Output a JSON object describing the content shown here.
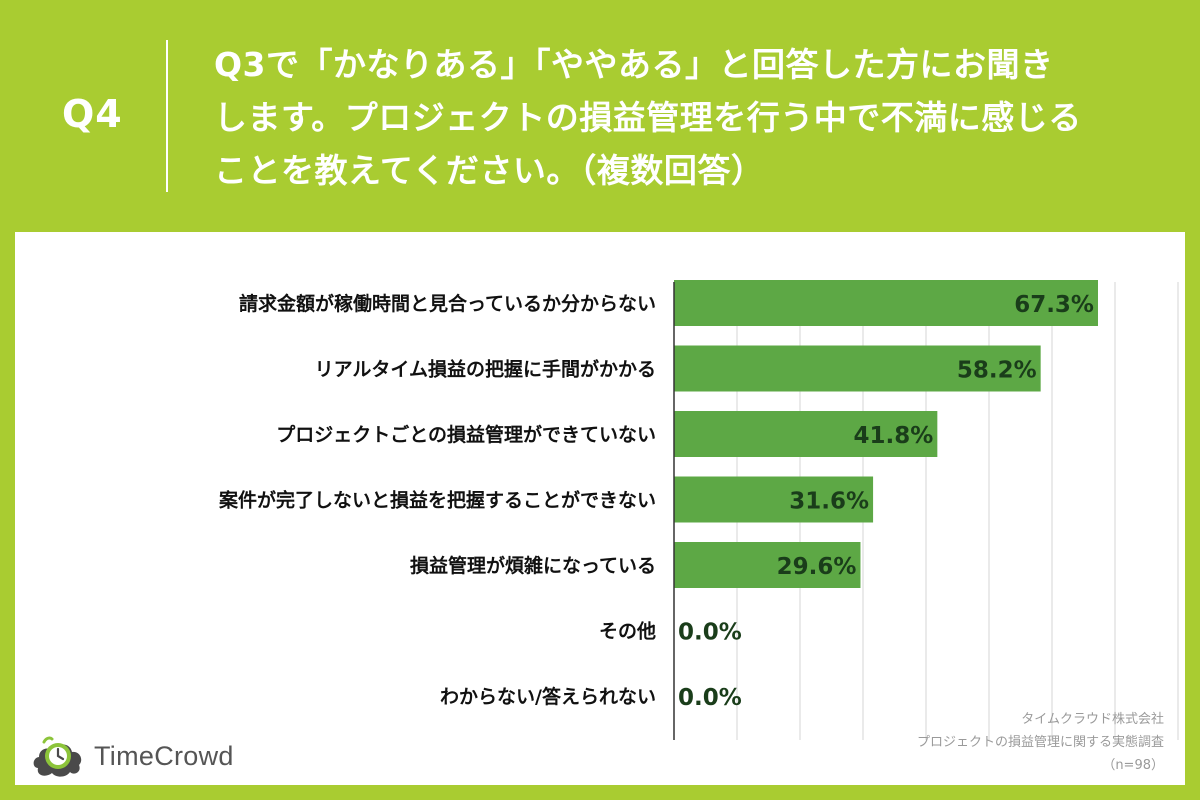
{
  "header": {
    "question_number": "Q4",
    "question_lines": [
      "Q3で「かなりある」「ややある」と回答した方にお聞き",
      "します。プロジェクトの損益管理を行う中で不満に感じる",
      "ことを教えてください。（複数回答）"
    ]
  },
  "chart_data": {
    "type": "bar",
    "orientation": "horizontal",
    "categories": [
      "請求金額が稼働時間と見合っているか分からない",
      "リアルタイム損益の把握に手間がかかる",
      "プロジェクトごとの損益管理ができていない",
      "案件が完了しないと損益を把握することができない",
      "損益管理が煩雑になっている",
      "その他",
      "わからない/答えられない"
    ],
    "values": [
      67.3,
      58.2,
      41.8,
      31.6,
      29.6,
      0.0,
      0.0
    ],
    "data_labels": [
      "67.3%",
      "58.2%",
      "41.8%",
      "31.6%",
      "29.6%",
      "0.0%",
      "0.0%"
    ],
    "xlim": [
      0,
      80
    ],
    "grid": true,
    "bar_color": "#5da845",
    "label_color": "#1a3d1a"
  },
  "footer": {
    "logo_text": "TimeCrowd",
    "credit_company": "タイムクラウド株式会社",
    "credit_survey": "プロジェクトの損益管理に関する実態調査",
    "credit_n": "（n=98）"
  },
  "colors": {
    "background": "#a9cc31",
    "panel": "#ffffff",
    "gridline": "#d6d6d6",
    "axis": "#333333"
  }
}
